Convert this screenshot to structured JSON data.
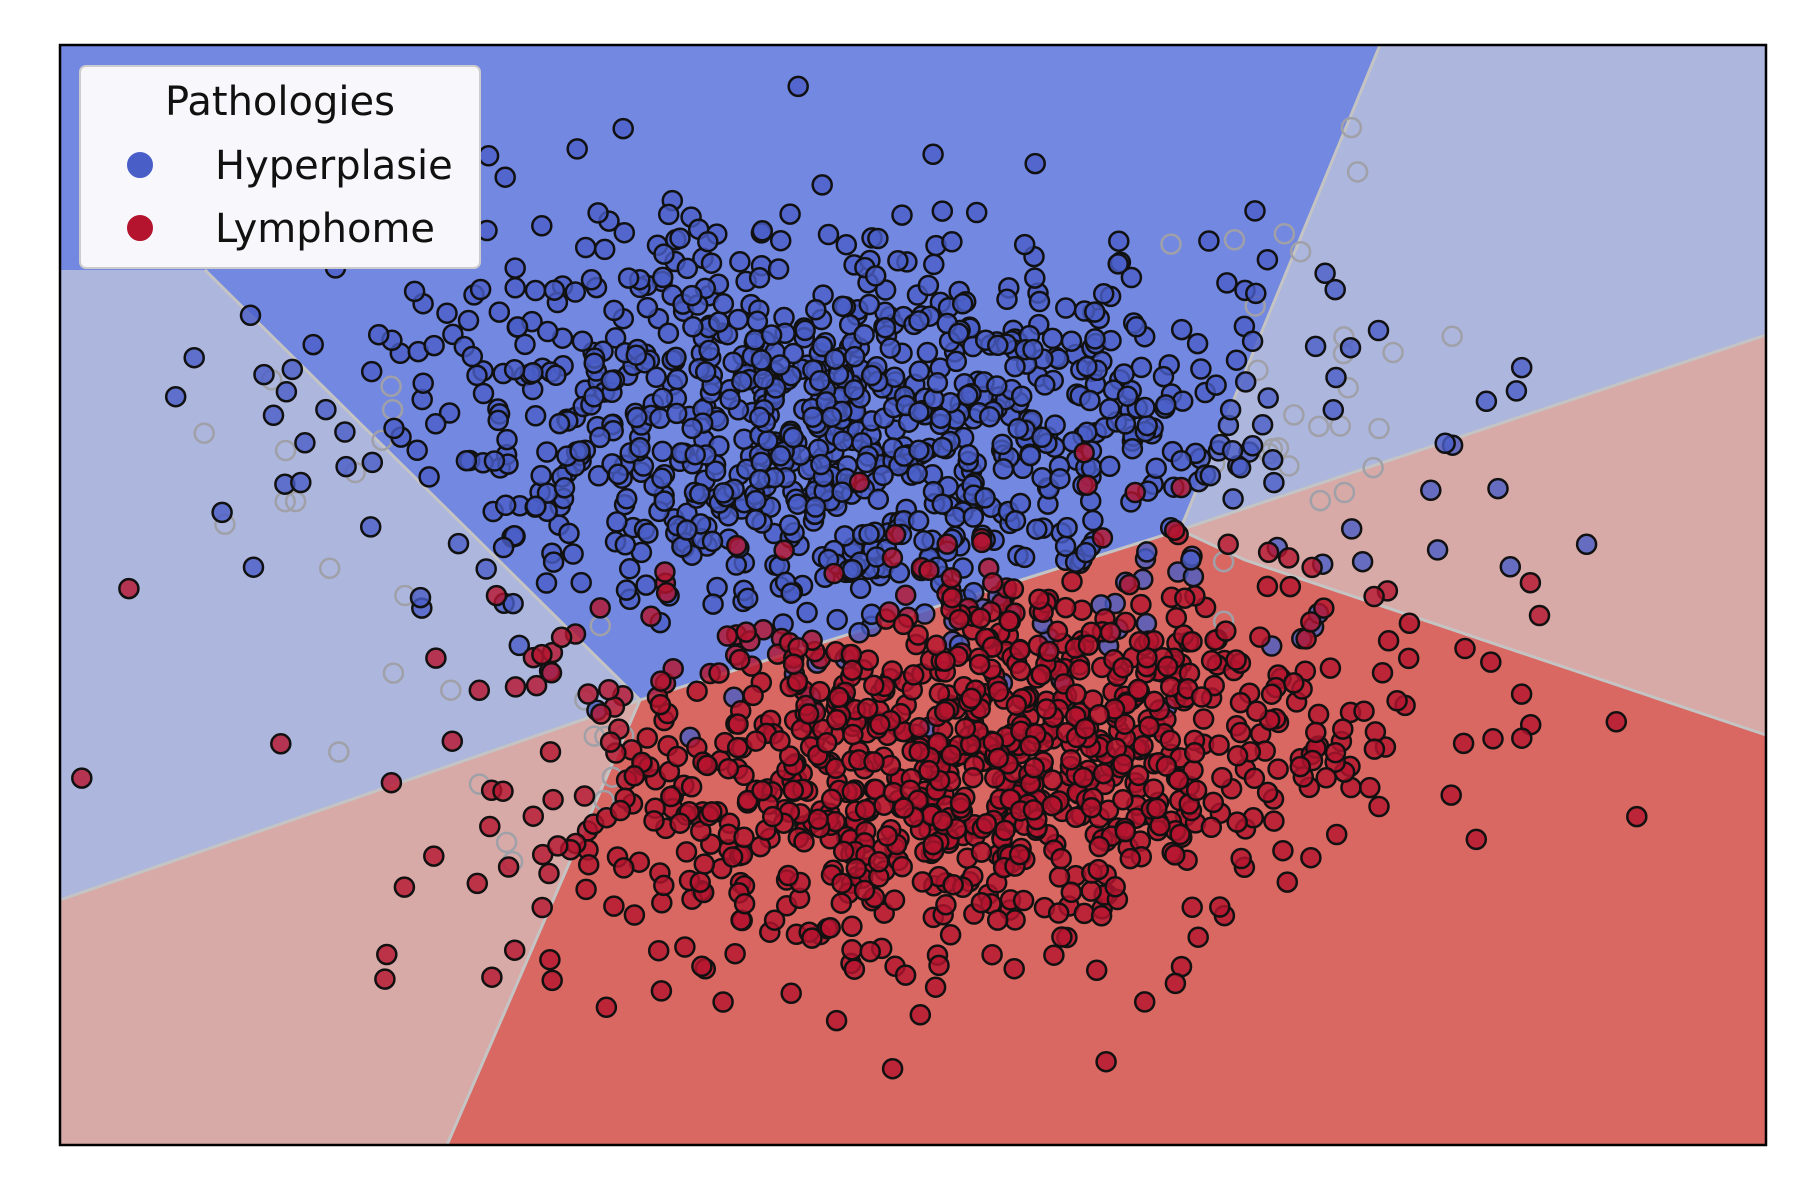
{
  "chart_data": {
    "type": "scatter",
    "title": "",
    "xlabel": "",
    "ylabel": "",
    "axes_visible": false,
    "grid": false,
    "legend": {
      "title": "Pathologies",
      "placement": "top-left",
      "entries": [
        "Hyperplasie",
        "Lymphome"
      ]
    },
    "background": "Voronoi-style decision regions: two strong-colour central regions and four light-colour outer regions",
    "regions": [
      {
        "class": "Hyperplasie",
        "strength": "strong",
        "color": "#7388e1"
      },
      {
        "class": "Lymphome",
        "strength": "strong",
        "color": "#d86861"
      },
      {
        "class": "Hyperplasie",
        "strength": "light",
        "color": "#adb6dd"
      },
      {
        "class": "Lymphome",
        "strength": "light",
        "color": "#d8aaa7"
      }
    ],
    "series": [
      {
        "name": "Hyperplasie",
        "color": "#4a5ec8",
        "approx_count": 1000,
        "center": [
          0.46,
          0.35
        ],
        "spread": [
          0.135,
          0.095
        ],
        "correlation": 0.1
      },
      {
        "name": "Lymphome",
        "color": "#b5142e",
        "approx_count": 1000,
        "center": [
          0.53,
          0.65
        ],
        "spread": [
          0.125,
          0.09
        ],
        "correlation": -0.25
      }
    ],
    "outlier_points_in_light_regions": {
      "color": "#a0a0a8",
      "approx_count": 55
    }
  },
  "colors": {
    "boundary": "#c4c4c4",
    "frame": "#000000",
    "marker_edge": "#111111"
  }
}
